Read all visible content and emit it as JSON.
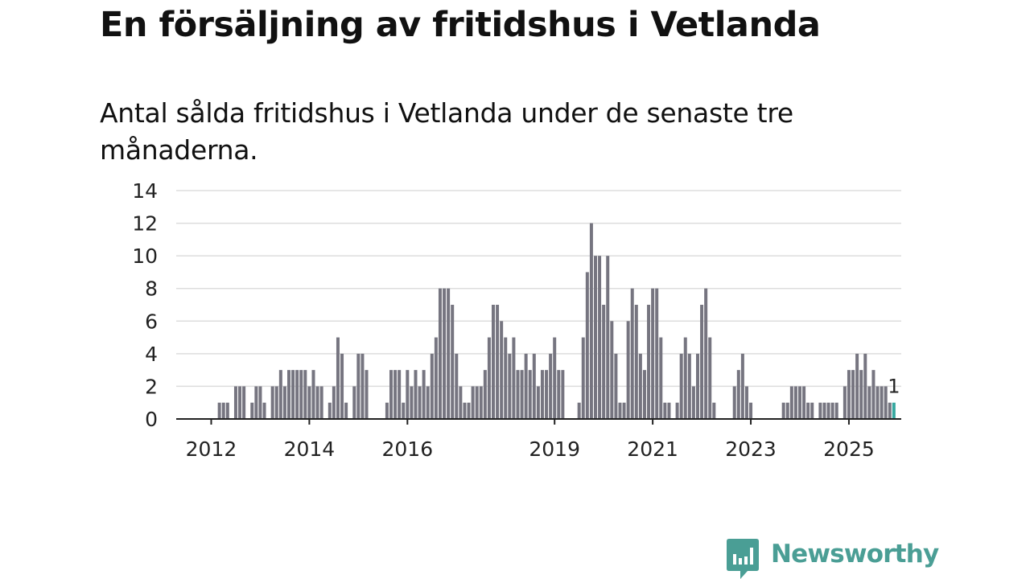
{
  "chart_data": {
    "type": "bar",
    "title": "En försäljning av fritidshus i Vetlanda",
    "subtitle": "Antal sålda fritidshus i Vetlanda under de senaste tre månaderna.",
    "xlabel": "",
    "ylabel": "",
    "ylim": [
      0,
      14
    ],
    "yticks": [
      0,
      2,
      4,
      6,
      8,
      10,
      12,
      14
    ],
    "xticks": [
      "2012",
      "2014",
      "2016",
      "2019",
      "2021",
      "2023",
      "2025"
    ],
    "grid": "horizontal",
    "first_month": "2011-07",
    "bar_color": "#767580",
    "highlight_color": "#36a8a0",
    "values": [
      0,
      0,
      0,
      0,
      0,
      0,
      0,
      0,
      1,
      1,
      1,
      0,
      2,
      2,
      2,
      0,
      1,
      2,
      2,
      1,
      0,
      2,
      2,
      3,
      2,
      3,
      3,
      3,
      3,
      3,
      2,
      3,
      2,
      2,
      0,
      1,
      2,
      5,
      4,
      1,
      0,
      2,
      4,
      4,
      3,
      0,
      0,
      0,
      0,
      1,
      3,
      3,
      3,
      1,
      3,
      2,
      3,
      2,
      3,
      2,
      4,
      5,
      8,
      8,
      8,
      7,
      4,
      2,
      1,
      1,
      2,
      2,
      2,
      3,
      5,
      7,
      7,
      6,
      5,
      4,
      5,
      3,
      3,
      4,
      3,
      4,
      2,
      3,
      3,
      4,
      5,
      3,
      3,
      0,
      0,
      0,
      1,
      5,
      9,
      12,
      10,
      10,
      7,
      10,
      6,
      4,
      1,
      1,
      6,
      8,
      7,
      4,
      3,
      7,
      8,
      8,
      5,
      1,
      1,
      0,
      1,
      4,
      5,
      4,
      2,
      4,
      7,
      8,
      5,
      1,
      0,
      0,
      0,
      0,
      2,
      3,
      4,
      2,
      1,
      0,
      0,
      0,
      0,
      0,
      0,
      0,
      1,
      1,
      2,
      2,
      2,
      2,
      1,
      1,
      0,
      1,
      1,
      1,
      1,
      1,
      0,
      2,
      3,
      3,
      4,
      3,
      4,
      2,
      3,
      2,
      2,
      2,
      1
    ],
    "last_value": 1,
    "last_value_label": "1"
  },
  "brand": {
    "logo_icon": "newsworthy-chart-bubble-icon",
    "name": "Newsworthy",
    "color": "#4a9e95"
  }
}
